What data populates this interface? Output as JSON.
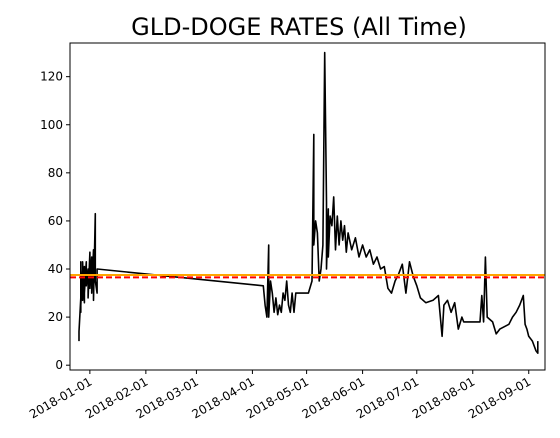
{
  "chart_data": {
    "type": "line",
    "title": "GLD-DOGE RATES (All Time)",
    "xlabel": "",
    "ylabel": "",
    "x_axis_type": "date",
    "xlim": [
      "2017-12-21",
      "2018-09-10"
    ],
    "ylim": [
      -2,
      134
    ],
    "grid": false,
    "legend": "none",
    "x_ticks": [
      "2018-01-01",
      "2018-02-01",
      "2018-03-01",
      "2018-04-01",
      "2018-05-01",
      "2018-06-01",
      "2018-07-01",
      "2018-08-01",
      "2018-09-01"
    ],
    "y_ticks": [
      0,
      20,
      40,
      60,
      80,
      100,
      120
    ],
    "series": [
      {
        "color": "#000000",
        "style": "solid",
        "points": [
          [
            "2017-12-26",
            10
          ],
          [
            "2017-12-26",
            14
          ],
          [
            "2017-12-27",
            28
          ],
          [
            "2017-12-27",
            22
          ],
          [
            "2017-12-27",
            43
          ],
          [
            "2017-12-27",
            25
          ],
          [
            "2017-12-28",
            40
          ],
          [
            "2017-12-28",
            27
          ],
          [
            "2017-12-28",
            43
          ],
          [
            "2017-12-29",
            26
          ],
          [
            "2017-12-29",
            41
          ],
          [
            "2017-12-29",
            30
          ],
          [
            "2017-12-30",
            43
          ],
          [
            "2017-12-30",
            33
          ],
          [
            "2017-12-31",
            40
          ],
          [
            "2017-12-31",
            28
          ],
          [
            "2018-01-01",
            47
          ],
          [
            "2018-01-01",
            32
          ],
          [
            "2018-01-02",
            45
          ],
          [
            "2018-01-02",
            30
          ],
          [
            "2018-01-03",
            48
          ],
          [
            "2018-01-03",
            27
          ],
          [
            "2018-01-04",
            63
          ],
          [
            "2018-01-04",
            35
          ],
          [
            "2018-01-05",
            30
          ],
          [
            "2018-01-05",
            40
          ],
          [
            "2018-04-07",
            33
          ],
          [
            "2018-04-08",
            25
          ],
          [
            "2018-04-09",
            20
          ],
          [
            "2018-04-10",
            50
          ],
          [
            "2018-04-10",
            20
          ],
          [
            "2018-04-11",
            35
          ],
          [
            "2018-04-12",
            30
          ],
          [
            "2018-04-13",
            22
          ],
          [
            "2018-04-14",
            28
          ],
          [
            "2018-04-15",
            21
          ],
          [
            "2018-04-16",
            25
          ],
          [
            "2018-04-17",
            22
          ],
          [
            "2018-04-18",
            30
          ],
          [
            "2018-04-19",
            27
          ],
          [
            "2018-04-20",
            35
          ],
          [
            "2018-04-21",
            25
          ],
          [
            "2018-04-22",
            22
          ],
          [
            "2018-04-23",
            30
          ],
          [
            "2018-04-24",
            22
          ],
          [
            "2018-04-25",
            30
          ],
          [
            "2018-04-27",
            30
          ],
          [
            "2018-04-29",
            30
          ],
          [
            "2018-05-02",
            30
          ],
          [
            "2018-05-04",
            35
          ],
          [
            "2018-05-05",
            96
          ],
          [
            "2018-05-05",
            50
          ],
          [
            "2018-05-06",
            60
          ],
          [
            "2018-05-07",
            55
          ],
          [
            "2018-05-08",
            35
          ],
          [
            "2018-05-09",
            40
          ],
          [
            "2018-05-10",
            50
          ],
          [
            "2018-05-11",
            130
          ],
          [
            "2018-05-12",
            68
          ],
          [
            "2018-05-12",
            40
          ],
          [
            "2018-05-13",
            65
          ],
          [
            "2018-05-13",
            45
          ],
          [
            "2018-05-14",
            62
          ],
          [
            "2018-05-15",
            58
          ],
          [
            "2018-05-16",
            70
          ],
          [
            "2018-05-17",
            48
          ],
          [
            "2018-05-18",
            62
          ],
          [
            "2018-05-19",
            50
          ],
          [
            "2018-05-20",
            60
          ],
          [
            "2018-05-21",
            52
          ],
          [
            "2018-05-22",
            58
          ],
          [
            "2018-05-23",
            47
          ],
          [
            "2018-05-24",
            55
          ],
          [
            "2018-05-26",
            48
          ],
          [
            "2018-05-28",
            53
          ],
          [
            "2018-05-30",
            45
          ],
          [
            "2018-06-01",
            50
          ],
          [
            "2018-06-03",
            45
          ],
          [
            "2018-06-05",
            48
          ],
          [
            "2018-06-07",
            42
          ],
          [
            "2018-06-09",
            45
          ],
          [
            "2018-06-11",
            40
          ],
          [
            "2018-06-13",
            41
          ],
          [
            "2018-06-15",
            32
          ],
          [
            "2018-06-17",
            30
          ],
          [
            "2018-06-19",
            35
          ],
          [
            "2018-06-21",
            38
          ],
          [
            "2018-06-23",
            42
          ],
          [
            "2018-06-25",
            30
          ],
          [
            "2018-06-27",
            43
          ],
          [
            "2018-06-29",
            37
          ],
          [
            "2018-07-01",
            33
          ],
          [
            "2018-07-03",
            28
          ],
          [
            "2018-07-06",
            26
          ],
          [
            "2018-07-10",
            27
          ],
          [
            "2018-07-13",
            29
          ],
          [
            "2018-07-15",
            12
          ],
          [
            "2018-07-16",
            25
          ],
          [
            "2018-07-18",
            27
          ],
          [
            "2018-07-20",
            22
          ],
          [
            "2018-07-22",
            26
          ],
          [
            "2018-07-24",
            15
          ],
          [
            "2018-07-26",
            20
          ],
          [
            "2018-07-27",
            18
          ],
          [
            "2018-07-28",
            18
          ],
          [
            "2018-08-05",
            18
          ],
          [
            "2018-08-06",
            29
          ],
          [
            "2018-08-07",
            18
          ],
          [
            "2018-08-08",
            45
          ],
          [
            "2018-08-09",
            20
          ],
          [
            "2018-08-12",
            18
          ],
          [
            "2018-08-14",
            13
          ],
          [
            "2018-08-16",
            15
          ],
          [
            "2018-08-21",
            17
          ],
          [
            "2018-08-23",
            20
          ],
          [
            "2018-08-25",
            22
          ],
          [
            "2018-08-27",
            25
          ],
          [
            "2018-08-29",
            29
          ],
          [
            "2018-08-30",
            17
          ],
          [
            "2018-08-31",
            15
          ],
          [
            "2018-09-01",
            12
          ],
          [
            "2018-09-02",
            11
          ],
          [
            "2018-09-03",
            10
          ],
          [
            "2018-09-04",
            8
          ],
          [
            "2018-09-05",
            6
          ],
          [
            "2018-09-06",
            5
          ],
          [
            "2018-09-06",
            10
          ]
        ]
      },
      {
        "color": "#ff0000",
        "style": "dashed",
        "y_constant": 36.5
      },
      {
        "color": "#ffa500",
        "style": "solid",
        "y_constant": 37.5
      }
    ]
  }
}
